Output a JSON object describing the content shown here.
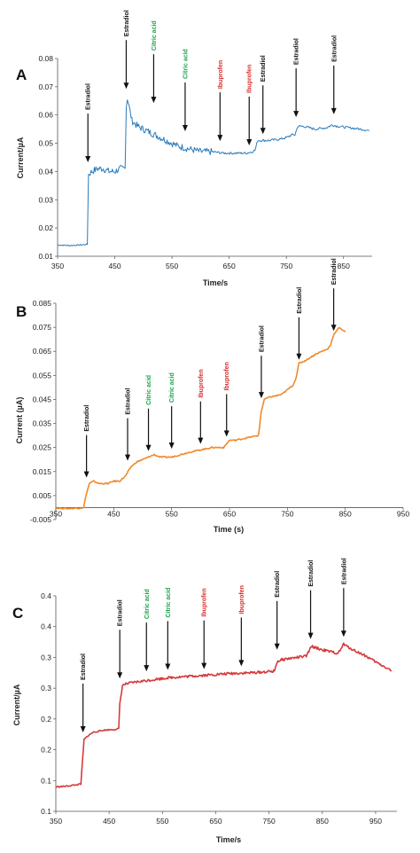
{
  "colors": {
    "estradiol": "#111111",
    "citric_acid": "#1aa34a",
    "ibuprofen": "#d92b2b"
  },
  "chart_data": [
    {
      "type": "line",
      "panel": "A",
      "xlabel": "Time/s",
      "ylabel": "Current/µA",
      "xlim": [
        350,
        900
      ],
      "ylim": [
        0.01,
        0.08
      ],
      "xticks": [
        "350",
        "450",
        "550",
        "650",
        "750",
        "850"
      ],
      "yticks": [
        "0.01",
        "0.02",
        "0.03",
        "0.04",
        "0.05",
        "0.06",
        "0.07",
        "0.08"
      ],
      "line_color": "#2a7ab9",
      "grid": false,
      "series": [
        {
          "x": [
            350,
            370,
            390,
            402,
            404,
            410,
            420,
            430,
            440,
            450,
            460,
            468,
            470,
            472,
            480,
            490,
            500,
            510,
            520,
            530,
            540,
            560,
            580,
            600,
            620,
            640,
            660,
            680,
            690,
            695,
            700,
            710,
            720,
            740,
            750,
            760,
            765,
            770,
            780,
            800,
            820,
            830,
            840,
            860,
            880,
            895
          ],
          "y": [
            0.014,
            0.0138,
            0.014,
            0.0142,
            0.039,
            0.04,
            0.041,
            0.041,
            0.04,
            0.04,
            0.041,
            0.041,
            0.063,
            0.066,
            0.058,
            0.056,
            0.055,
            0.054,
            0.053,
            0.052,
            0.051,
            0.049,
            0.048,
            0.047,
            0.047,
            0.0465,
            0.0465,
            0.0465,
            0.047,
            0.0475,
            0.051,
            0.051,
            0.051,
            0.0515,
            0.052,
            0.053,
            0.053,
            0.056,
            0.056,
            0.055,
            0.0555,
            0.0565,
            0.056,
            0.0555,
            0.055,
            0.0545
          ]
        }
      ],
      "annotations": [
        {
          "label": "Estradiol",
          "kind": "estradiol",
          "x": 403,
          "y": 0.042
        },
        {
          "label": "Estradiol",
          "kind": "estradiol",
          "x": 470,
          "y": 0.068
        },
        {
          "label": "Citric acid",
          "kind": "citric_acid",
          "x": 518,
          "y": 0.063
        },
        {
          "label": "Citric acid",
          "kind": "citric_acid",
          "x": 573,
          "y": 0.053
        },
        {
          "label": "Ibuprofen",
          "kind": "ibuprofen",
          "x": 634,
          "y": 0.0495
        },
        {
          "label": "Ibuprofen",
          "kind": "ibuprofen",
          "x": 685,
          "y": 0.048
        },
        {
          "label": "Estradiol",
          "kind": "estradiol",
          "x": 709,
          "y": 0.052
        },
        {
          "label": "Estradiol",
          "kind": "estradiol",
          "x": 767,
          "y": 0.058
        },
        {
          "label": "Estradiol",
          "kind": "estradiol",
          "x": 833,
          "y": 0.059
        }
      ]
    },
    {
      "type": "line",
      "panel": "B",
      "xlabel": "Time (s)",
      "ylabel": "Current (µA)",
      "xlim": [
        350,
        950
      ],
      "ylim": [
        -0.005,
        0.085
      ],
      "xticks": [
        "350",
        "450",
        "550",
        "650",
        "750",
        "850",
        "950"
      ],
      "yticks": [
        "-0.005",
        "0.005",
        "0.015",
        "0.025",
        "0.035",
        "0.045",
        "0.055",
        "0.065",
        "0.075",
        "0.085"
      ],
      "line_color": "#f08a2c",
      "grid": false,
      "series": [
        {
          "x": [
            350,
            370,
            390,
            398,
            402,
            408,
            415,
            425,
            440,
            450,
            460,
            470,
            480,
            490,
            500,
            510,
            520,
            530,
            550,
            580,
            600,
            620,
            640,
            650,
            660,
            680,
            700,
            705,
            710,
            720,
            740,
            760,
            765,
            770,
            780,
            800,
            820,
            825,
            830,
            840,
            845,
            850
          ],
          "y": [
            -0.0002,
            -0.0004,
            -0.0002,
            0.0,
            0.005,
            0.01,
            0.011,
            0.01,
            0.01,
            0.011,
            0.011,
            0.013,
            0.017,
            0.019,
            0.02,
            0.021,
            0.022,
            0.021,
            0.021,
            0.023,
            0.024,
            0.025,
            0.025,
            0.028,
            0.028,
            0.029,
            0.03,
            0.04,
            0.045,
            0.046,
            0.047,
            0.051,
            0.054,
            0.06,
            0.061,
            0.064,
            0.066,
            0.068,
            0.072,
            0.075,
            0.074,
            0.073
          ]
        }
      ],
      "annotations": [
        {
          "label": "Estradiol",
          "kind": "estradiol",
          "x": 403,
          "y": 0.011
        },
        {
          "label": "Estradiol",
          "kind": "estradiol",
          "x": 474,
          "y": 0.018
        },
        {
          "label": "Citric acid",
          "kind": "citric_acid",
          "x": 510,
          "y": 0.022
        },
        {
          "label": "Citric acid",
          "kind": "citric_acid",
          "x": 550,
          "y": 0.023
        },
        {
          "label": "Ibuprofen",
          "kind": "ibuprofen",
          "x": 600,
          "y": 0.025
        },
        {
          "label": "Ibuprofen",
          "kind": "ibuprofen",
          "x": 645,
          "y": 0.028
        },
        {
          "label": "Estradiol",
          "kind": "estradiol",
          "x": 705,
          "y": 0.044
        },
        {
          "label": "Estradiol",
          "kind": "estradiol",
          "x": 770,
          "y": 0.06
        },
        {
          "label": "Estradiol",
          "kind": "estradiol",
          "x": 830,
          "y": 0.072
        }
      ]
    },
    {
      "type": "line",
      "panel": "C",
      "xlabel": "Time/s",
      "ylabel": "Current/µA",
      "xlim": [
        350,
        990
      ],
      "ylim": [
        0.1,
        0.4
      ],
      "xticks": [
        "350",
        "450",
        "550",
        "650",
        "750",
        "850",
        "950"
      ],
      "yticks": [
        "0.1",
        "0.1",
        "0.2",
        "0.2",
        "0.3",
        "0.3",
        "0.4",
        "0.4"
      ],
      "line_color": "#d43b3b",
      "grid": false,
      "series": [
        {
          "x": [
            350,
            370,
            390,
            397,
            400,
            403,
            410,
            420,
            440,
            460,
            468,
            470,
            475,
            480,
            500,
            520,
            540,
            560,
            600,
            640,
            680,
            720,
            760,
            765,
            770,
            780,
            800,
            820,
            825,
            830,
            840,
            860,
            880,
            885,
            890,
            895,
            910,
            930,
            950,
            970,
            980
          ],
          "y": [
            0.134,
            0.135,
            0.137,
            0.138,
            0.17,
            0.2,
            0.205,
            0.21,
            0.213,
            0.214,
            0.215,
            0.25,
            0.275,
            0.277,
            0.28,
            0.282,
            0.284,
            0.286,
            0.288,
            0.29,
            0.292,
            0.293,
            0.295,
            0.308,
            0.31,
            0.312,
            0.314,
            0.316,
            0.323,
            0.33,
            0.327,
            0.323,
            0.32,
            0.326,
            0.333,
            0.33,
            0.324,
            0.317,
            0.308,
            0.3,
            0.296
          ]
        }
      ],
      "annotations": [
        {
          "label": "Estradiol",
          "kind": "estradiol",
          "x": 401,
          "y": 0.205
        },
        {
          "label": "Estradiol",
          "kind": "estradiol",
          "x": 470,
          "y": 0.28
        },
        {
          "label": "Citric acid",
          "kind": "citric_acid",
          "x": 520,
          "y": 0.29
        },
        {
          "label": "Citric acid",
          "kind": "citric_acid",
          "x": 560,
          "y": 0.292
        },
        {
          "label": "Ibuprofen",
          "kind": "ibuprofen",
          "x": 628,
          "y": 0.293
        },
        {
          "label": "Ibuprofen",
          "kind": "ibuprofen",
          "x": 698,
          "y": 0.297
        },
        {
          "label": "Estradiol",
          "kind": "estradiol",
          "x": 765,
          "y": 0.32
        },
        {
          "label": "Estradiol",
          "kind": "estradiol",
          "x": 828,
          "y": 0.335
        },
        {
          "label": "Estradiol",
          "kind": "estradiol",
          "x": 890,
          "y": 0.338
        }
      ]
    }
  ]
}
